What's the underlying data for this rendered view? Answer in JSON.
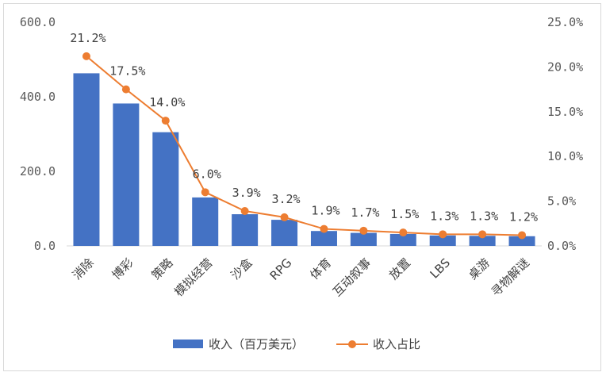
{
  "chart_data": {
    "type": "bar",
    "categories": [
      "消除",
      "博彩",
      "策略",
      "模拟经营",
      "沙盒",
      "RPG",
      "体育",
      "互动叙事",
      "放置",
      "LBS",
      "桌游",
      "寻物解谜"
    ],
    "series": [
      {
        "name": "收入（百万美元）",
        "type": "bar",
        "axis": "left",
        "color": "#4472C4",
        "values": [
          463,
          382,
          305,
          130,
          85,
          70,
          40,
          35,
          32,
          28,
          27,
          26
        ]
      },
      {
        "name": "收入占比",
        "type": "line",
        "axis": "right",
        "color": "#ED7D31",
        "values": [
          21.2,
          17.5,
          14.0,
          6.0,
          3.9,
          3.2,
          1.9,
          1.7,
          1.5,
          1.3,
          1.3,
          1.2
        ],
        "labels": [
          "21.2%",
          "17.5%",
          "14.0%",
          "6.0%",
          "3.9%",
          "3.2%",
          "1.9%",
          "1.7%",
          "1.5%",
          "1.3%",
          "1.3%",
          "1.2%"
        ]
      }
    ],
    "y_left": {
      "min": 0,
      "max": 600,
      "ticks": [
        "0.0",
        "200.0",
        "400.0",
        "600.0"
      ],
      "tick_values": [
        0,
        200,
        400,
        600
      ]
    },
    "y_right": {
      "min": 0,
      "max": 25,
      "ticks": [
        "0.0%",
        "5.0%",
        "10.0%",
        "15.0%",
        "20.0%",
        "25.0%"
      ],
      "tick_values": [
        0,
        5,
        10,
        15,
        20,
        25
      ]
    },
    "grid": false,
    "legend": "bottom"
  }
}
